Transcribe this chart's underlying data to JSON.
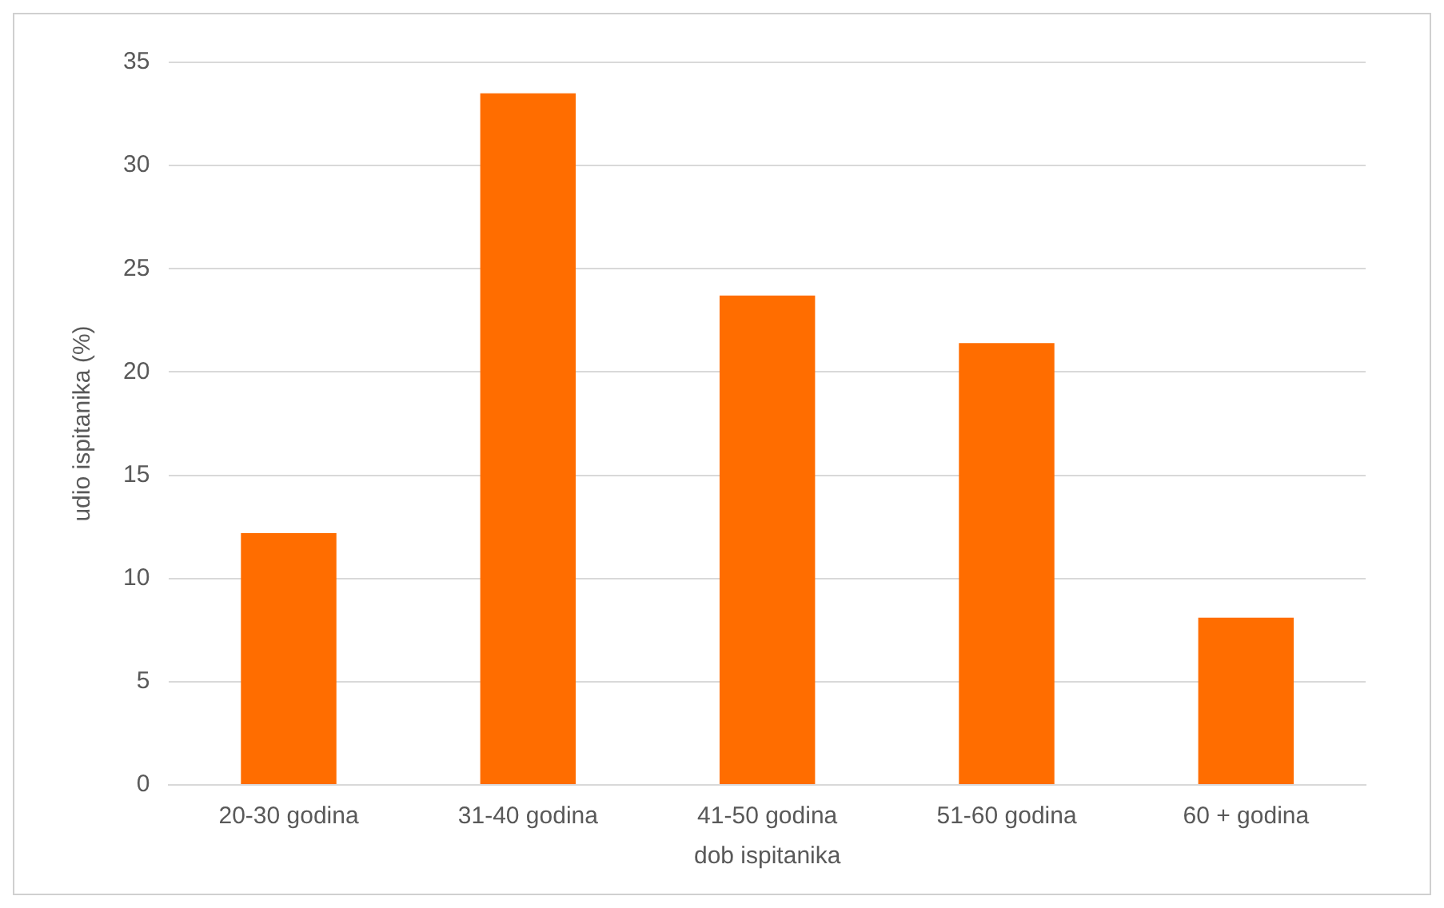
{
  "chart_data": {
    "type": "bar",
    "xlabel": "dob ispitanika",
    "ylabel": "udio ispitanika (%)",
    "categories": [
      "20-30 godina",
      "31-40 godina",
      "41-50 godina",
      "51-60 godina",
      "60 + godina"
    ],
    "values": [
      12.2,
      33.5,
      23.7,
      21.4,
      8.1
    ],
    "color": "#ff6d00",
    "ylim": [
      0,
      35
    ],
    "yticks": [
      0,
      5,
      10,
      15,
      20,
      25,
      30,
      35
    ],
    "grid": "y",
    "legend": false
  }
}
